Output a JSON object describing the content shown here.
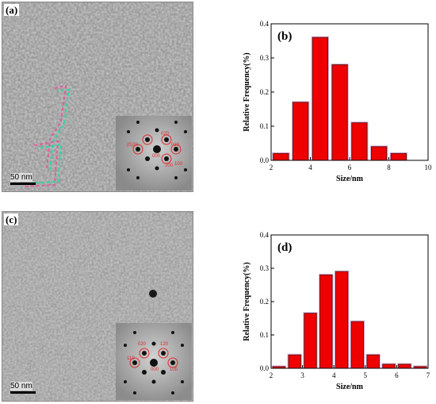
{
  "panels": {
    "a": {
      "tag": "(a)",
      "scale_bar": "50 nm",
      "saed_labels": [
        "020",
        "(0)20",
        "000",
        "010",
        "200",
        "100"
      ]
    },
    "c": {
      "tag": "(c)",
      "scale_bar": "50 nm",
      "saed_labels": [
        "020",
        "120",
        "110",
        "000",
        "100"
      ]
    }
  },
  "colors": {
    "bar_fill": "#ee0000",
    "bar_stroke": "#6b1111",
    "halo": "#d9b8e0"
  },
  "chart_data": [
    {
      "panel_tag": "(b)",
      "type": "bar",
      "x": [
        2.5,
        3.5,
        4.5,
        5.5,
        6.5,
        7.5,
        8.5
      ],
      "values": [
        0.02,
        0.17,
        0.36,
        0.28,
        0.11,
        0.04,
        0.02
      ],
      "xlabel": "Size/nm",
      "ylabel": "Relative Frequency(%)",
      "xlim": [
        2,
        10
      ],
      "ylim": [
        0,
        0.4
      ],
      "xticks": [
        "2",
        "4",
        "6",
        "8",
        "10"
      ],
      "yticks": [
        "0.0",
        "0.1",
        "0.2",
        "0.3",
        "0.4"
      ],
      "grid": false
    },
    {
      "panel_tag": "(d)",
      "type": "bar",
      "x": [
        2.25,
        2.75,
        3.25,
        3.75,
        4.25,
        4.75,
        5.25,
        5.75,
        6.25,
        6.75
      ],
      "values": [
        0.005,
        0.04,
        0.165,
        0.28,
        0.29,
        0.14,
        0.04,
        0.012,
        0.012,
        0.005
      ],
      "xlabel": "Size/nm",
      "ylabel": "Relative Frequency(%)",
      "xlim": [
        2,
        7
      ],
      "ylim": [
        0,
        0.4
      ],
      "xticks": [
        "2",
        "3",
        "4",
        "5",
        "6",
        "7"
      ],
      "yticks": [
        "0.0",
        "0.1",
        "0.2",
        "0.3",
        "0.4"
      ],
      "grid": false
    }
  ]
}
